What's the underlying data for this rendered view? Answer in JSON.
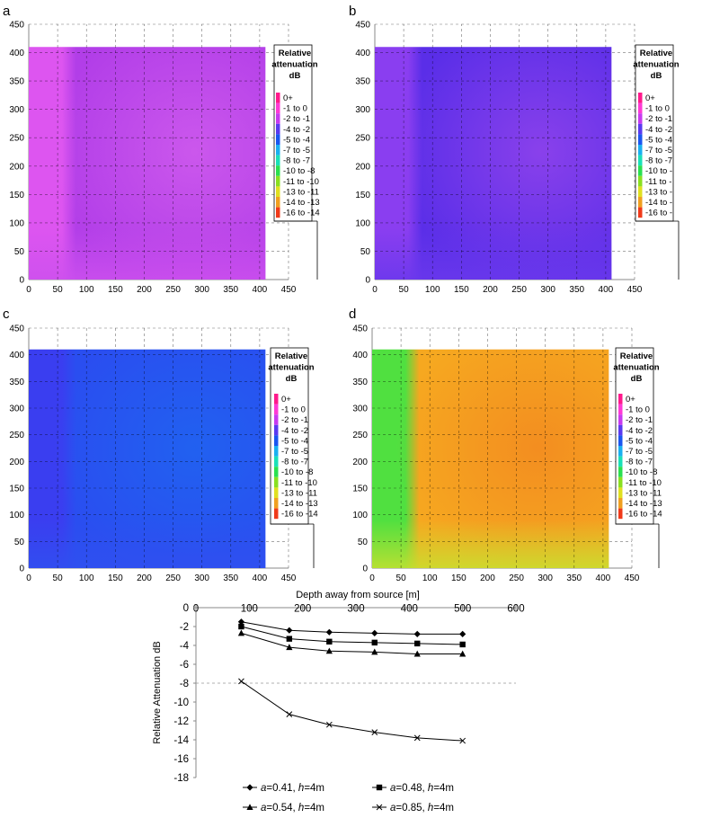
{
  "panels": [
    {
      "letter": "a",
      "legend_title": [
        "Relative",
        "attenuation",
        "dB"
      ],
      "legend_items": [
        "0+",
        "-1 to 0",
        "-2 to -1",
        "-4 to -2",
        "-5 to -4",
        "-7 to -5",
        "-8 to -7",
        "-10 to -8",
        "-11 to -10",
        "-13 to -11",
        "-14 to -13",
        "-16 to -14"
      ],
      "base_color": "#b23ee8",
      "edge_color": "#dd55f0",
      "bottom_color": "#cc50ee",
      "accent_color": "#e06cf0"
    },
    {
      "letter": "b",
      "legend_title": [
        "Relative",
        "attenuation",
        "dB"
      ],
      "legend_items": [
        "0+",
        "-1 to 0",
        "-2 to -1",
        "-4 to -2",
        "-5 to -4",
        "-7 to -5",
        "-8 to -7",
        "-10 to -",
        "-11 to -",
        "-13 to -",
        "-14 to -",
        "-16 to -"
      ],
      "base_color": "#5a2ee8",
      "edge_color": "#8a3ef0",
      "bottom_color": "#6a38ec",
      "accent_color": "#b050ee"
    },
    {
      "letter": "c",
      "legend_title": [
        "Relative",
        "attenuation",
        "dB"
      ],
      "legend_items": [
        "0+",
        "-1 to 0",
        "-2 to -1",
        "-4 to -2",
        "-5 to -4",
        "-7 to -5",
        "-8 to -7",
        "-10 to -8",
        "-11 to -10",
        "-13 to -11",
        "-14 to -13",
        "-16 to -14"
      ],
      "base_color": "#2a4ef0",
      "edge_color": "#3a3ef0",
      "bottom_color": "#3050f0",
      "accent_color": "#1a70f0"
    },
    {
      "letter": "d",
      "legend_title": [
        "Relative",
        "attenuation",
        "dB"
      ],
      "legend_items": [
        "0+",
        "-1 to 0",
        "-2 to -1",
        "-4 to -2",
        "-5 to -4",
        "-7 to -5",
        "-8 to -7",
        "-10 to -8",
        "-11 to -10",
        "-13 to -11",
        "-14 to -13",
        "-16 to -14"
      ],
      "base_color": "#f6a820",
      "edge_color": "#50e040",
      "bottom_color": "#c8e030",
      "accent_color": "#f07820"
    }
  ],
  "legend_colors": [
    "#ff1a8c",
    "#ff3ad6",
    "#c83af0",
    "#5a3af0",
    "#1a56f0",
    "#1ab0f0",
    "#1ae0b8",
    "#2ae050",
    "#8ae020",
    "#e0e020",
    "#f0a020",
    "#f03a1a"
  ],
  "contour_axes": {
    "ticks": [
      0,
      50,
      100,
      150,
      200,
      250,
      300,
      350,
      400,
      450
    ],
    "range": [
      0,
      450
    ],
    "data_extent": [
      0,
      410
    ]
  },
  "chart_data": {
    "type": "line",
    "title": "",
    "xlabel": "Depth away from source [m]",
    "ylabel": "Relative Attenuation dB",
    "xlim": [
      0,
      600
    ],
    "ylim": [
      -18,
      0
    ],
    "x_ticks": [
      "0",
      "100",
      "200",
      "300",
      "400",
      "500",
      "600"
    ],
    "y_ticks": [
      "0",
      "-2",
      "-4",
      "-6",
      "-8",
      "-10",
      "-12",
      "-14",
      "-16",
      "-18"
    ],
    "x_axis_position": "top",
    "grid": "horizontal dashed at -8",
    "series": [
      {
        "name_a": "a",
        "name_a_val": "=0.41, ",
        "name_h": "h",
        "name_h_val": "=4m",
        "marker": "diamond",
        "x": [
          85,
          175,
          250,
          335,
          415,
          500
        ],
        "y": [
          -1.5,
          -2.4,
          -2.6,
          -2.7,
          -2.8,
          -2.8
        ]
      },
      {
        "name_a": "a",
        "name_a_val": "=0.48, ",
        "name_h": "h",
        "name_h_val": "=4m",
        "marker": "square",
        "x": [
          85,
          175,
          250,
          335,
          415,
          500
        ],
        "y": [
          -2.0,
          -3.3,
          -3.6,
          -3.7,
          -3.8,
          -3.9
        ]
      },
      {
        "name_a": "a",
        "name_a_val": "=0.54, ",
        "name_h": "h",
        "name_h_val": "=4m",
        "marker": "triangle",
        "x": [
          85,
          175,
          250,
          335,
          415,
          500
        ],
        "y": [
          -2.7,
          -4.2,
          -4.6,
          -4.7,
          -4.9,
          -4.9
        ]
      },
      {
        "name_a": "a",
        "name_a_val": "=0.85, ",
        "name_h": "h",
        "name_h_val": "=4m",
        "marker": "x",
        "x": [
          85,
          175,
          250,
          335,
          415,
          500
        ],
        "y": [
          -7.8,
          -11.3,
          -12.4,
          -13.2,
          -13.8,
          -14.1
        ]
      }
    ]
  }
}
